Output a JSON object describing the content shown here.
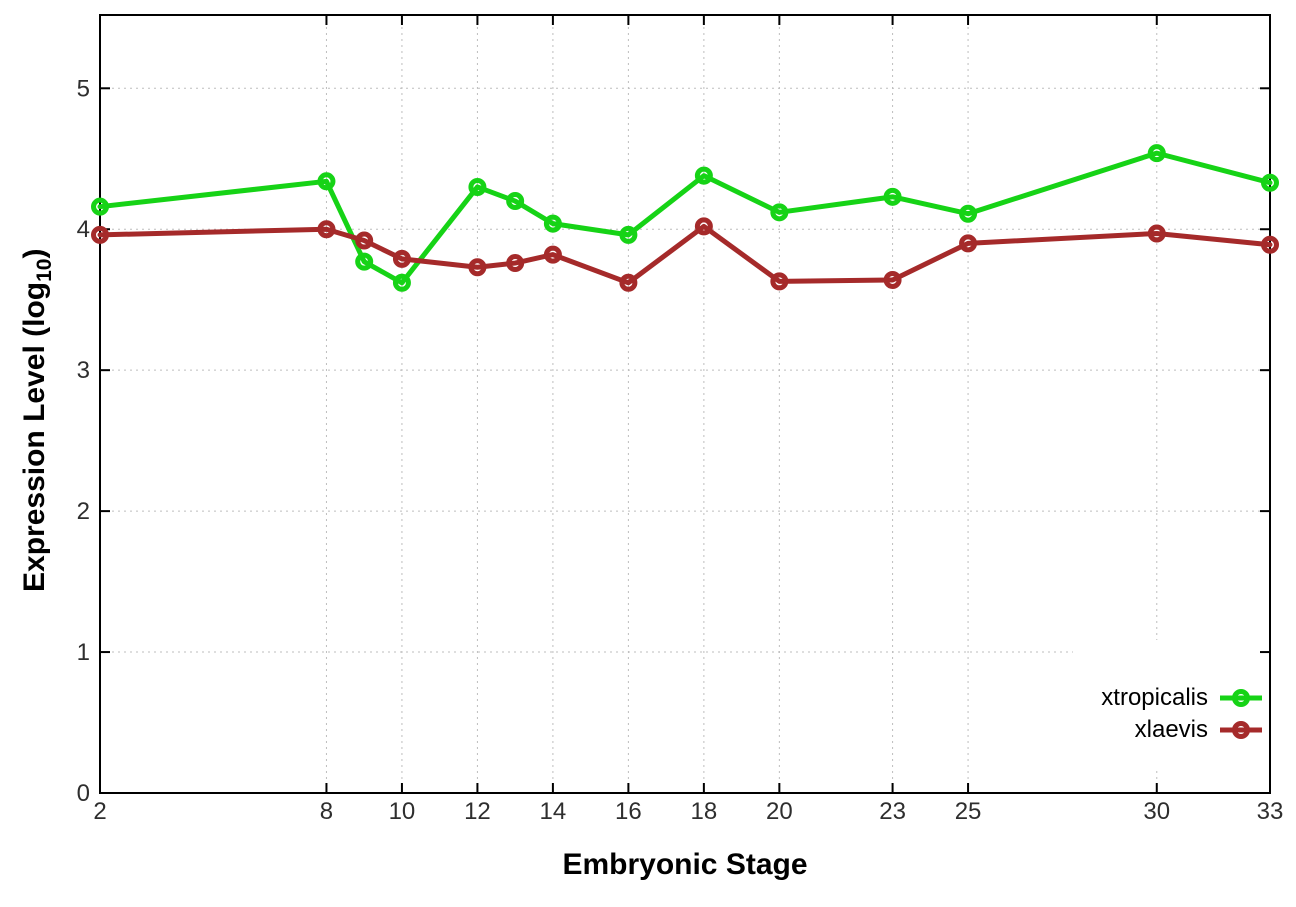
{
  "chart_data": {
    "type": "line",
    "title": "",
    "xlabel": "Embryonic Stage",
    "ylabel": {
      "prefix": "Expression Level (log",
      "sub": "10",
      "suffix": ")"
    },
    "x": [
      2,
      8,
      9,
      10,
      12,
      13,
      14,
      16,
      18,
      20,
      23,
      25,
      30,
      33
    ],
    "series": [
      {
        "name": "xtropicalis",
        "color": "#16d316",
        "values": [
          4.16,
          4.34,
          3.77,
          3.62,
          4.3,
          4.2,
          4.04,
          3.96,
          4.38,
          4.12,
          4.23,
          4.11,
          4.54,
          4.33
        ]
      },
      {
        "name": "xlaevis",
        "color": "#a52a2a",
        "values": [
          3.96,
          4.0,
          3.92,
          3.79,
          3.73,
          3.76,
          3.82,
          3.62,
          4.02,
          3.63,
          3.64,
          3.9,
          3.97,
          3.89
        ]
      }
    ],
    "x_tick_labels": [
      "2",
      "8",
      "10",
      "12",
      "14",
      "16",
      "18",
      "20",
      "23",
      "25",
      "30",
      "33"
    ],
    "x_tick_values": [
      2,
      8,
      10,
      12,
      14,
      16,
      18,
      20,
      23,
      25,
      30,
      33
    ],
    "y_tick_labels": [
      "0",
      "1",
      "2",
      "3",
      "4",
      "5"
    ],
    "y_tick_values": [
      0,
      1,
      2,
      3,
      4,
      5
    ],
    "xlim": [
      2,
      33
    ],
    "ylim": [
      0,
      5.52
    ],
    "grid": true,
    "legend_position": "bottom-right-inside"
  },
  "colors": {
    "background": "#ffffff",
    "border": "#000000",
    "grid": "#bdbdbd",
    "tick_label": "#2e2e2e",
    "axis_title": "#000000"
  }
}
